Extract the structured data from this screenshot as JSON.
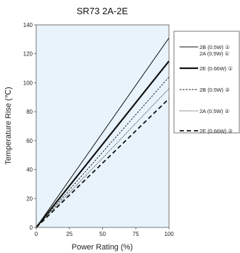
{
  "chart_data": {
    "type": "line",
    "title": "SR73 2A-2E",
    "xlabel": "Power Rating (%)",
    "ylabel": "Temperature Rise (℃)",
    "xlim": [
      0,
      100
    ],
    "ylim": [
      0,
      140
    ],
    "xticks": [
      "0",
      "25",
      "50",
      "75",
      "100"
    ],
    "yticks": [
      "0",
      "20",
      "40",
      "60",
      "80",
      "100",
      "120",
      "140"
    ],
    "grid": false,
    "legend_position": "right",
    "plot_background": "#e8f3fb",
    "series": [
      {
        "name": "2B (0.5W) ①",
        "name_line2": "2A (0.5W) ①",
        "style": "thin-solid",
        "color": "#111111",
        "x": [
          0,
          100
        ],
        "y": [
          0,
          131
        ]
      },
      {
        "name": "2E (0.66W) ①",
        "style": "thick-solid",
        "color": "#111111",
        "x": [
          0,
          100
        ],
        "y": [
          0,
          115
        ]
      },
      {
        "name": "2B (0.5W) ②",
        "style": "dashed-fine",
        "color": "#111111",
        "x": [
          0,
          100
        ],
        "y": [
          0,
          104
        ]
      },
      {
        "name": "2A (0.5W) ②",
        "style": "dotted",
        "color": "#111111",
        "x": [
          0,
          100
        ],
        "y": [
          0,
          96
        ]
      },
      {
        "name": "2E (0.66W) ②",
        "style": "thick-dashed",
        "color": "#111111",
        "x": [
          0,
          100
        ],
        "y": [
          0,
          89
        ]
      }
    ]
  }
}
